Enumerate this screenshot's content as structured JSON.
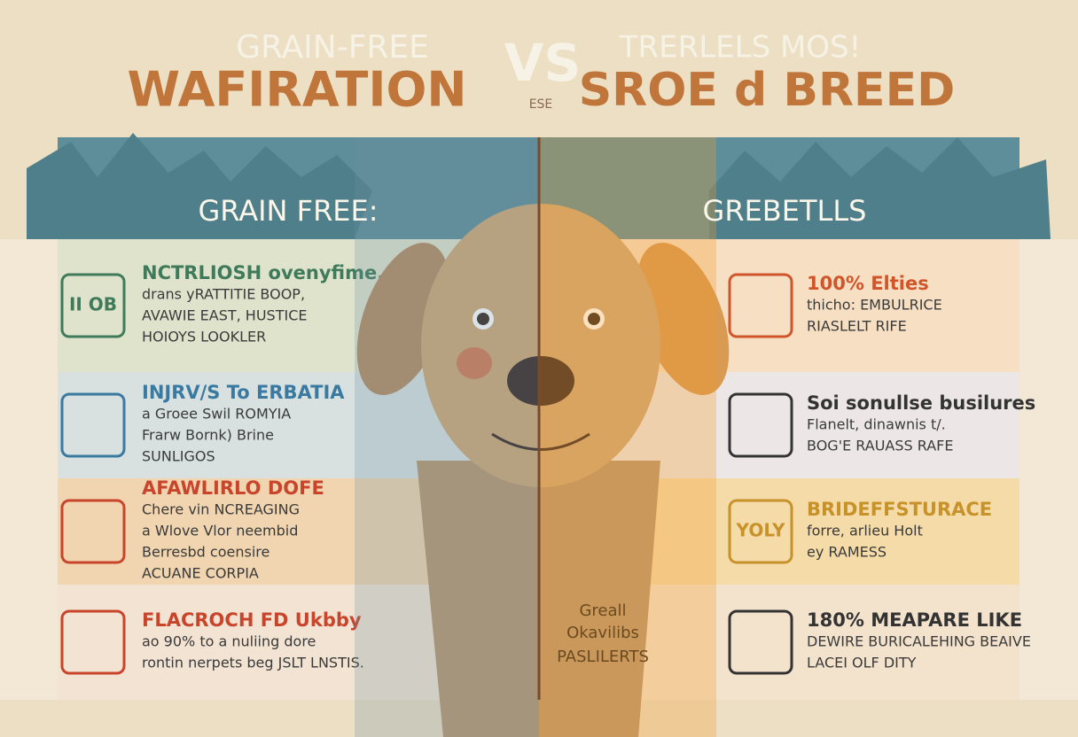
{
  "header": {
    "left_small": "GRAIN-FREE",
    "left_title": "WAFIRATION",
    "vs": "VS",
    "vs_sub": "ESE",
    "right_small": "TRERLELS MOS!",
    "right_title": "SROE d BREED"
  },
  "columns": [
    {
      "heading": "GRAIN FREE:",
      "rows": [
        {
          "icon": "II OB",
          "lines": [
            "NCTRLIOSH ovenyfime,",
            "drans yRATTITIE BOOP,",
            "AVAWIE EAST, HUSTICE",
            "HOIOYS LOOKLER"
          ]
        },
        {
          "lines": [
            "INJRV/S To ERBATIA",
            "a Groee Swil ROMYIA",
            "Frarw Bornk) Brine",
            "SUNLIGOS"
          ]
        },
        {
          "lines": [
            "AFAWLIRLO DOFE",
            "Chere vin NCREAGING",
            "a Wlove Vlor neembid",
            "Berresbd coensire",
            "ACUANE CORPIA"
          ]
        },
        {
          "lines": [
            "FLACROCH FD Ukbby",
            "ao 90% to a nuliing dore",
            "rontin nerpets beg JSLT LNSTIS."
          ]
        }
      ]
    },
    {
      "heading": "GREBETLLS",
      "rows": [
        {
          "lines": [
            "100% Elties",
            "thicho: EMBULRICE",
            "RIASLELT RIFE"
          ]
        },
        {
          "lines": [
            "Soi sonullse busilures",
            "Flanelt, dinawnis t/.",
            "BOG'E RAUASS RAFE"
          ]
        },
        {
          "icon": "YOLY",
          "lines": [
            "BRIDEFFSTURACE",
            "forre, arlieu Holt",
            "ey RAMESS"
          ]
        },
        {
          "lines": [
            "180% MEAPARE LIKE",
            "DEWIRE BURICALEHING BEAIVE",
            "LACEI OLF DITY"
          ]
        }
      ]
    }
  ],
  "center_note": [
    "Greall",
    "Okavilibs",
    "PASLILERTS"
  ]
}
